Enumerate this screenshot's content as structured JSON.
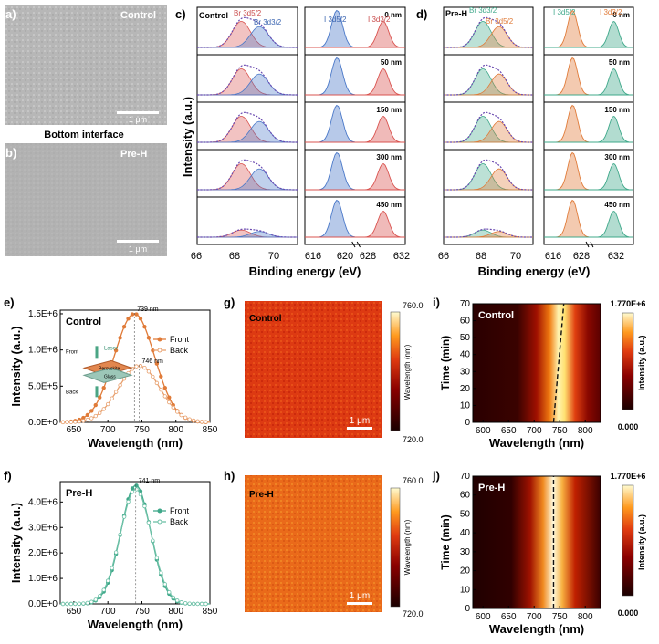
{
  "panel_labels": {
    "a": "a)",
    "b": "b)",
    "c": "c)",
    "d": "d)",
    "e": "e)",
    "f": "f)",
    "g": "g)",
    "h": "h)",
    "i": "i)",
    "j": "j)"
  },
  "sem": {
    "control_label": "Control",
    "prh_label": "Pre-H",
    "scale_bar": "1 μm",
    "caption": "Bottom interface"
  },
  "xps": {
    "ylabel": "Intensity (a.u.)",
    "xlabel": "Binding energy (eV)",
    "depths": [
      "0 nm",
      "50 nm",
      "150 nm",
      "300 nm",
      "450 nm"
    ],
    "br_ticks": [
      "66",
      "68",
      "70"
    ],
    "i_ticks": [
      "616",
      "620",
      "628",
      "632"
    ],
    "control": {
      "title": "Control",
      "br52": "Br 3d5/2",
      "br32": "Br 3d3/2",
      "i52": "I 3d5/2",
      "i32": "I 3d3/2"
    },
    "preh": {
      "title": "Pre-H",
      "br32": "Br 3d3/2",
      "br52": "Br 3d5/2",
      "i52": "I 3d5/2",
      "i32": "I 3d3/2"
    }
  },
  "chart_data": [
    {
      "panel": "e",
      "type": "line",
      "title": "Control",
      "xlabel": "Wavelength (nm)",
      "ylabel": "Intensity (a.u.)",
      "xlim": [
        630,
        850
      ],
      "ylim": [
        0,
        1550000
      ],
      "xticks": [
        "650",
        "700",
        "750",
        "800",
        "850"
      ],
      "yticks": [
        "0.0E+0",
        "5.0E+5",
        "1.0E+6",
        "1.5E+6"
      ],
      "series": [
        {
          "name": "Front",
          "peak_x": 739,
          "peak_y": 1500000,
          "fwhm": 70,
          "color": "#e07b39"
        },
        {
          "name": "Back",
          "peak_x": 746,
          "peak_y": 780000,
          "fwhm": 72,
          "color": "#e8a06e"
        }
      ],
      "annotations": [
        "739 nm",
        "746 nm"
      ],
      "inset": {
        "front": "Front",
        "back": "Back",
        "laser": "Laser",
        "perovskite": "Perovskite",
        "glass": "Glass"
      }
    },
    {
      "panel": "f",
      "type": "line",
      "title": "Pre-H",
      "xlabel": "Wavelength (nm)",
      "ylabel": "Intensity (a.u.)",
      "xlim": [
        630,
        850
      ],
      "ylim": [
        0,
        4800000
      ],
      "xticks": [
        "650",
        "700",
        "750",
        "800",
        "850"
      ],
      "yticks": [
        "0.0E+0",
        "1.0E+6",
        "2.0E+6",
        "3.0E+6",
        "4.0E+6"
      ],
      "series": [
        {
          "name": "Front",
          "peak_x": 741,
          "peak_y": 4650000,
          "fwhm": 52,
          "color": "#3fa88a"
        },
        {
          "name": "Back",
          "peak_x": 741,
          "peak_y": 4500000,
          "fwhm": 54,
          "color": "#6cc0a6"
        }
      ],
      "annotations": [
        "741 nm"
      ]
    },
    {
      "panel": "g",
      "type": "heatmap",
      "title": "Control",
      "colorbar_label": "Wavelength (nm)",
      "colorbar_range": [
        "720.0",
        "760.0"
      ],
      "scale_bar": "1 μm"
    },
    {
      "panel": "h",
      "type": "heatmap",
      "title": "Pre-H",
      "colorbar_label": "Wavelength (nm)",
      "colorbar_range": [
        "720.0",
        "760.0"
      ],
      "scale_bar": "1 μm"
    },
    {
      "panel": "i",
      "type": "heatmap",
      "title": "Control",
      "xlabel": "Wavelength (nm)",
      "ylabel": "Time (min)",
      "xlim": [
        580,
        830
      ],
      "ylim": [
        0,
        70
      ],
      "xticks": [
        "600",
        "650",
        "700",
        "750",
        "800"
      ],
      "yticks": [
        "0",
        "10",
        "20",
        "30",
        "40",
        "50",
        "60",
        "70"
      ],
      "peak_start": 738,
      "peak_end": 758,
      "colorbar_label": "Intensity (a.u.)",
      "colorbar_range": [
        "0.000",
        "1.770E+6"
      ]
    },
    {
      "panel": "j",
      "type": "heatmap",
      "title": "Pre-H",
      "xlabel": "Wavelength (nm)",
      "ylabel": "Time (min)",
      "xlim": [
        580,
        830
      ],
      "ylim": [
        0,
        70
      ],
      "xticks": [
        "600",
        "650",
        "700",
        "750",
        "800"
      ],
      "yticks": [
        "0",
        "10",
        "20",
        "30",
        "40",
        "50",
        "60",
        "70"
      ],
      "peak_start": 738,
      "peak_end": 738,
      "colorbar_label": "Intensity (a.u.)",
      "colorbar_range": [
        "0.000",
        "1.770E+6"
      ]
    }
  ]
}
